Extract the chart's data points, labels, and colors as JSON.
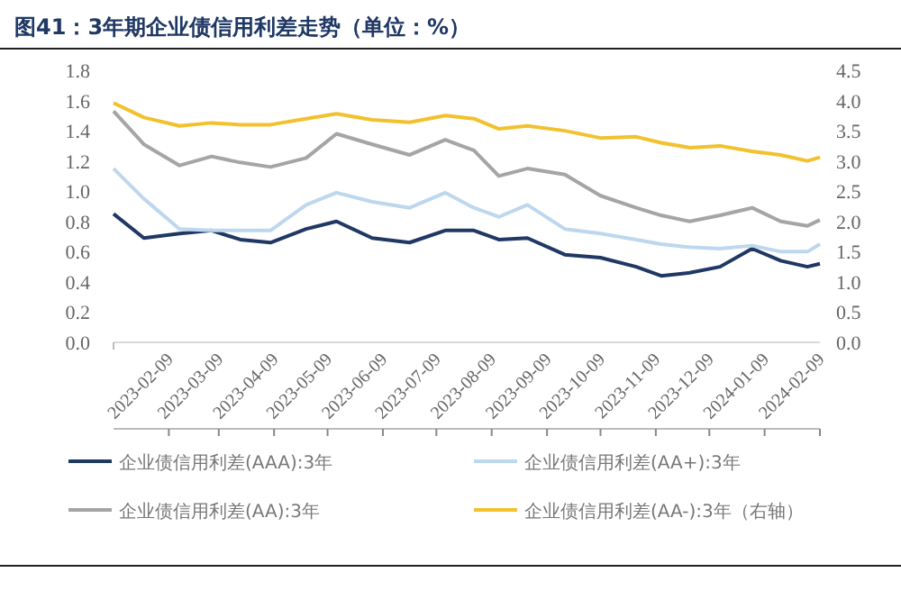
{
  "chart_data": {
    "type": "line",
    "title": "图41：3年期企业债信用利差走势（单位：%）",
    "x": [
      "2023-01-09",
      "2023-01-26",
      "2023-02-15",
      "2023-03-05",
      "2023-03-21",
      "2023-04-07",
      "2023-04-27",
      "2023-05-14",
      "2023-06-03",
      "2023-06-24",
      "2023-07-14",
      "2023-07-30",
      "2023-08-13",
      "2023-08-29",
      "2023-09-19",
      "2023-10-09",
      "2023-10-29",
      "2023-11-12",
      "2023-11-28",
      "2023-12-15",
      "2024-01-02",
      "2024-01-18",
      "2024-02-02",
      "2024-02-09"
    ],
    "series": [
      {
        "name": "企业债信用利差(AAA):3年",
        "color": "#1f3864",
        "values": [
          0.85,
          0.69,
          0.72,
          0.74,
          0.68,
          0.66,
          0.75,
          0.8,
          0.69,
          0.66,
          0.74,
          0.74,
          0.68,
          0.69,
          0.58,
          0.56,
          0.5,
          0.44,
          0.46,
          0.5,
          0.62,
          0.54,
          0.5,
          0.52
        ]
      },
      {
        "name": "企业债信用利差(AA+):3年",
        "color": "#bdd7ee",
        "values": [
          1.15,
          0.95,
          0.75,
          0.74,
          0.74,
          0.74,
          0.91,
          0.99,
          0.93,
          0.89,
          0.99,
          0.89,
          0.83,
          0.91,
          0.75,
          0.72,
          0.68,
          0.65,
          0.63,
          0.62,
          0.64,
          0.6,
          0.6,
          0.65
        ]
      },
      {
        "name": "企业债信用利差(AA):3年",
        "color": "#a5a5a5",
        "values": [
          1.53,
          1.31,
          1.17,
          1.23,
          1.19,
          1.16,
          1.22,
          1.38,
          1.31,
          1.24,
          1.34,
          1.27,
          1.1,
          1.15,
          1.11,
          0.97,
          0.89,
          0.84,
          0.8,
          0.84,
          0.89,
          0.8,
          0.77,
          0.81
        ]
      },
      {
        "name": "企业债信用利差(AA-):3年（右轴）",
        "color": "#f2c12e",
        "axis": "y2",
        "values": [
          3.96,
          3.72,
          3.58,
          3.63,
          3.6,
          3.6,
          3.7,
          3.78,
          3.68,
          3.64,
          3.75,
          3.7,
          3.53,
          3.58,
          3.5,
          3.38,
          3.4,
          3.3,
          3.22,
          3.25,
          3.16,
          3.1,
          3.0,
          3.06
        ]
      }
    ],
    "xticks": [
      "2023-02-09",
      "2023-03-09",
      "2023-04-09",
      "2023-05-09",
      "2023-06-09",
      "2023-07-09",
      "2023-08-09",
      "2023-09-09",
      "2023-10-09",
      "2023-11-09",
      "2023-12-09",
      "2024-01-09",
      "2024-02-09"
    ],
    "xlim": [
      "2023-01-09",
      "2024-02-09"
    ],
    "ylim": [
      0,
      1.8
    ],
    "yticks": [
      {
        "value": 0,
        "label": "0.0"
      },
      {
        "value": 0.2,
        "label": "0.2"
      },
      {
        "value": 0.4,
        "label": "0.4"
      },
      {
        "value": 0.6,
        "label": "0.6"
      },
      {
        "value": 0.8,
        "label": "0.8"
      },
      {
        "value": 1,
        "label": "1.0"
      },
      {
        "value": 1.2,
        "label": "1.2"
      },
      {
        "value": 1.4,
        "label": "1.4"
      },
      {
        "value": 1.6,
        "label": "1.6"
      },
      {
        "value": 1.8,
        "label": "1.8"
      }
    ],
    "y2lim": [
      0,
      4.5
    ],
    "y2ticks": [
      {
        "value": 0,
        "label": "0.0"
      },
      {
        "value": 0.5,
        "label": "0.5"
      },
      {
        "value": 1,
        "label": "1.0"
      },
      {
        "value": 1.5,
        "label": "1.5"
      },
      {
        "value": 2,
        "label": "2.0"
      },
      {
        "value": 2.5,
        "label": "2.5"
      },
      {
        "value": 3,
        "label": "3.0"
      },
      {
        "value": 3.5,
        "label": "3.5"
      },
      {
        "value": 4,
        "label": "4.0"
      },
      {
        "value": 4.5,
        "label": "4.5"
      }
    ],
    "grid": false,
    "legend": "bottom",
    "marker": "none",
    "line_style": "solid"
  }
}
